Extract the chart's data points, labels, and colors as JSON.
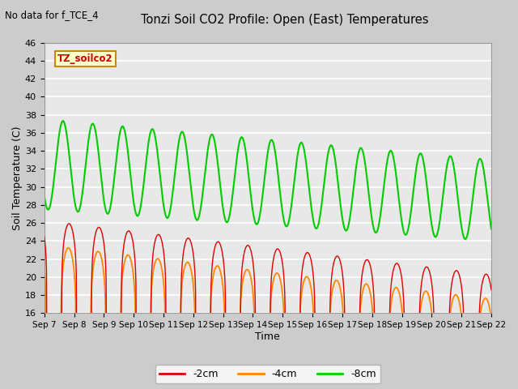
{
  "title": "Tonzi Soil CO2 Profile: Open (East) Temperatures",
  "subtitle": "No data for f_TCE_4",
  "xlabel": "Time",
  "ylabel": "Soil Temperature (C)",
  "ylim": [
    16,
    46
  ],
  "yticks": [
    16,
    18,
    20,
    22,
    24,
    26,
    28,
    30,
    32,
    34,
    36,
    38,
    40,
    42,
    44,
    46
  ],
  "xtick_labels": [
    "Sep 7",
    "Sep 8",
    "Sep 9",
    "Sep 10",
    "Sep 11",
    "Sep 12",
    "Sep 13",
    "Sep 14",
    "Sep 15",
    "Sep 16",
    "Sep 17",
    "Sep 18",
    "Sep 19",
    "Sep 20",
    "Sep 21",
    "Sep 22"
  ],
  "colors_2cm": "#dd0000",
  "colors_4cm": "#ff8800",
  "colors_8cm": "#00cc00",
  "n_days": 15
}
